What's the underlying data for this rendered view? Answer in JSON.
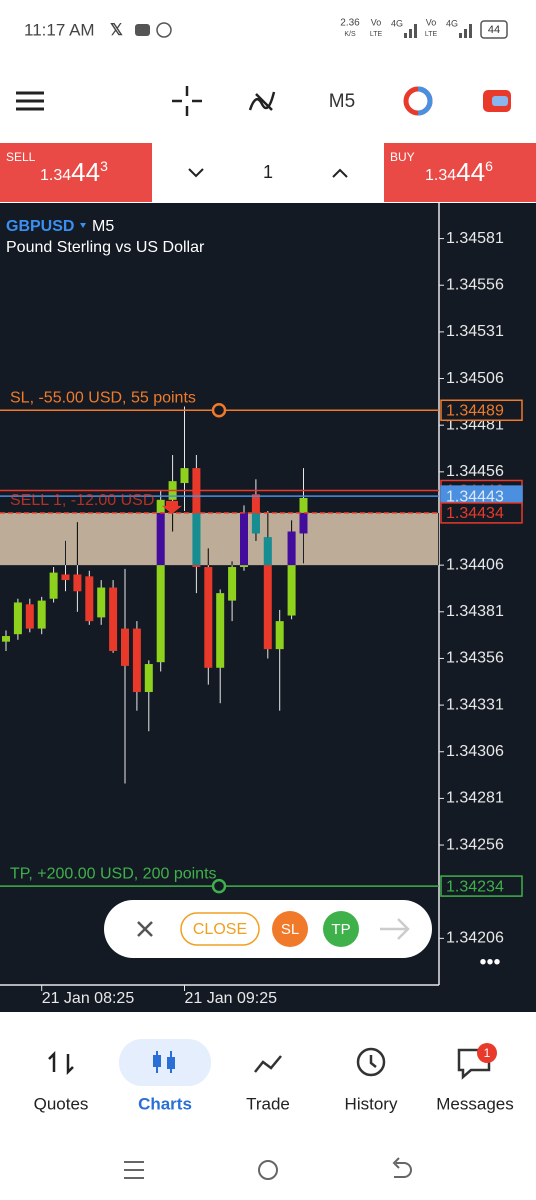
{
  "status_bar": {
    "time": "11:17 AM",
    "speed": "2.36",
    "speed_unit": "K/S",
    "vo1": "Vo",
    "lte1": "LTE",
    "net1": "4G",
    "vo2": "Vo",
    "lte2": "LTE",
    "net2": "4G",
    "battery": "44"
  },
  "toolbar": {
    "timeframe": "M5"
  },
  "trade_panel": {
    "sell_label": "SELL",
    "sell_lead": "1.34",
    "sell_big": "44",
    "sell_sup": "3",
    "quantity": "1",
    "buy_label": "BUY",
    "buy_lead": "1.34",
    "buy_big": "44",
    "buy_sup": "6"
  },
  "chart_data": {
    "type": "candlestick",
    "symbol": "GBPUSD",
    "timeframe": "M5",
    "description": "Pound Sterling vs US Dollar",
    "categories": [
      null,
      null,
      null,
      "21 Jan 08:25",
      null,
      null,
      null,
      null,
      null,
      null,
      null,
      null,
      null,
      null,
      null,
      "21 Jan 09:25",
      null,
      null,
      null,
      null,
      null,
      null,
      null,
      null,
      null,
      null
    ],
    "open": [
      1.34365,
      1.34369,
      1.34385,
      1.34372,
      1.34388,
      1.34401,
      1.34401,
      1.344,
      1.34378,
      1.34394,
      1.34372,
      1.34372,
      1.34338,
      1.34354,
      1.34441,
      1.3445,
      1.34458,
      1.34405,
      1.34351,
      1.34387,
      1.34405,
      1.34444,
      1.34421,
      1.34361,
      1.34379,
      1.34423
    ],
    "high": [
      1.34371,
      1.34388,
      1.34388,
      1.34389,
      1.34405,
      1.34419,
      1.34429,
      1.34403,
      1.34398,
      1.34398,
      1.34404,
      1.34376,
      1.34355,
      1.34446,
      1.34465,
      1.34491,
      1.34465,
      1.34415,
      1.34393,
      1.34408,
      1.34438,
      1.34452,
      1.34435,
      1.34382,
      1.3443,
      1.34458
    ],
    "low": [
      1.3436,
      1.34366,
      1.3437,
      1.34369,
      1.34386,
      1.34392,
      1.34381,
      1.34374,
      1.34374,
      1.34359,
      1.34289,
      1.34328,
      1.34317,
      1.34349,
      1.34424,
      1.34435,
      1.34391,
      1.34342,
      1.34332,
      1.34376,
      1.34403,
      1.34419,
      1.34356,
      1.34328,
      1.34377,
      1.34407
    ],
    "close": [
      1.34368,
      1.34386,
      1.34372,
      1.34387,
      1.34402,
      1.34398,
      1.34392,
      1.34376,
      1.34394,
      1.3436,
      1.34352,
      1.34338,
      1.34353,
      1.34441,
      1.34451,
      1.34458,
      1.34405,
      1.34351,
      1.34391,
      1.34405,
      1.34434,
      1.34423,
      1.34361,
      1.34376,
      1.34424,
      1.34442
    ],
    "up_color": "#8ed21e",
    "down_color": "#e8392a",
    "ylim": [
      1.34181,
      1.34599
    ],
    "yticks": [
      1.34581,
      1.34556,
      1.34531,
      1.34506,
      1.34481,
      1.34456,
      1.34406,
      1.34381,
      1.34356,
      1.34331,
      1.34306,
      1.34281,
      1.34256,
      1.34206
    ],
    "zone": [
      1.34406,
      1.34434
    ],
    "lines": [
      {
        "label": "SL, -55.00 USD, 55 points",
        "value": 1.34489,
        "color": "#f07a2a",
        "label_style": "outline"
      },
      {
        "value": 1.34446,
        "color": "#e8392a",
        "label_style": "outline"
      },
      {
        "value": 1.34443,
        "color": "#4a8fe0",
        "label_style": "filled"
      },
      {
        "label": "SELL 1,  -12.00 USD",
        "value": 1.34434,
        "color": "#e8392a",
        "label_style": "outline",
        "dashed": true
      },
      {
        "label": "TP, +200.00 USD, 200 points",
        "value": 1.34234,
        "color": "#3fb14a",
        "label_style": "outline"
      }
    ]
  },
  "order_bar": {
    "close": "CLOSE",
    "sl": "SL",
    "tp": "TP"
  },
  "nav": {
    "items": [
      "Quotes",
      "Charts",
      "Trade",
      "History",
      "Messages"
    ],
    "badge": "1"
  }
}
